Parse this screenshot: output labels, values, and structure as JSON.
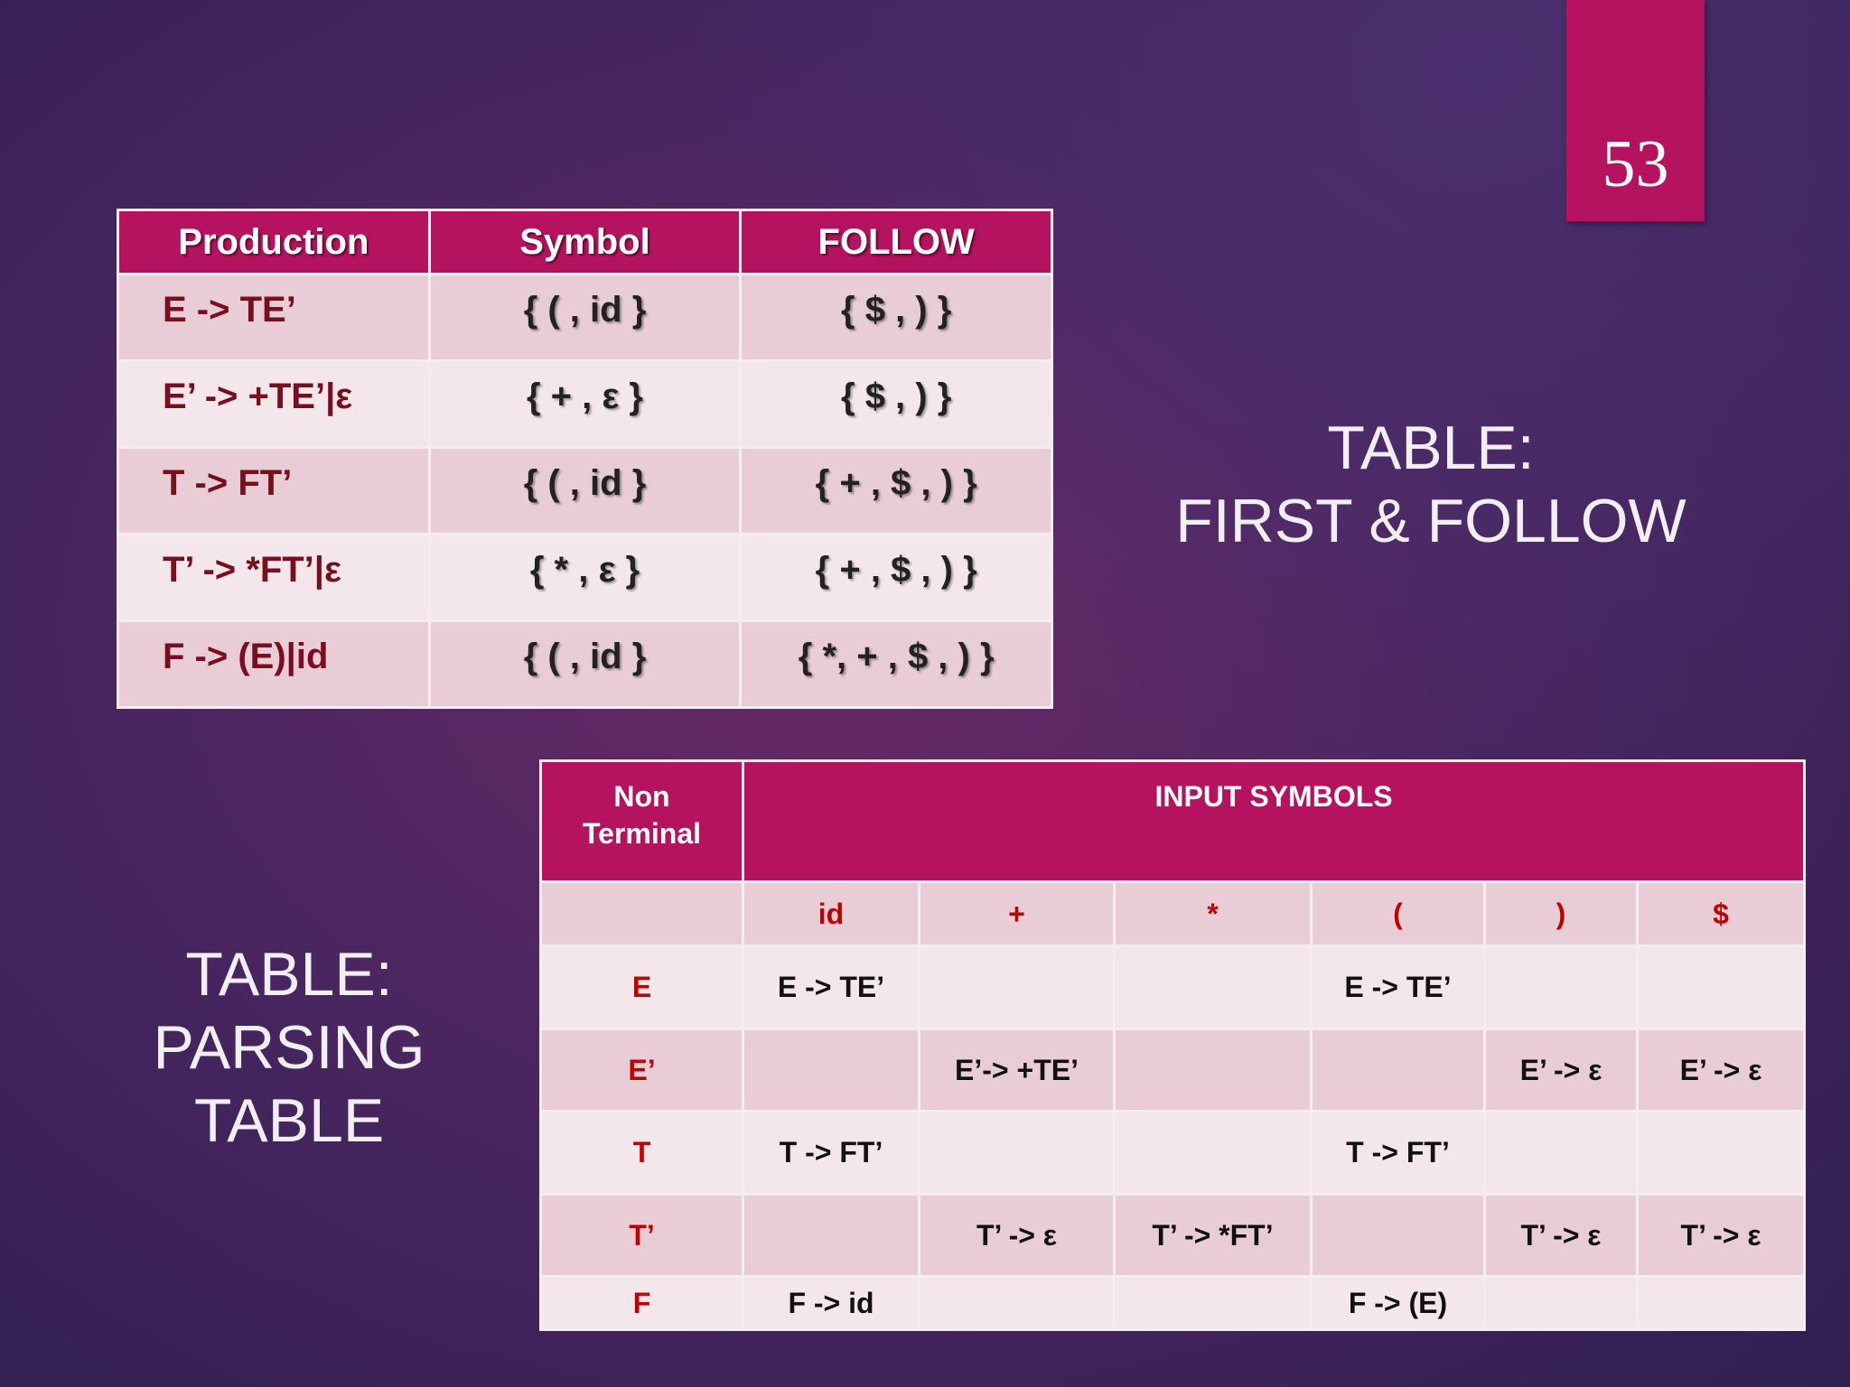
{
  "page_number": "53",
  "first_follow_heading": [
    "TABLE:",
    "FIRST & FOLLOW"
  ],
  "first_follow_table": {
    "header": [
      "Production",
      "Symbol",
      "FOLLOW"
    ],
    "rows": [
      [
        "E -> TE’",
        "{ ( , id }",
        "{ $ , ) }"
      ],
      [
        "E’ -> +TE’|ε",
        "{ + , ε }",
        "{ $ , ) }"
      ],
      [
        "T -> FT’",
        "{ ( , id }",
        "{ + , $ , ) }"
      ],
      [
        "T’ -> *FT’|ε",
        "{ * ,  ε }",
        "{ + , $ , ) }"
      ],
      [
        "F -> (E)|id",
        "{ ( , id }",
        "{ *, + , $ , ) }"
      ]
    ]
  },
  "parsing_heading": [
    "TABLE:",
    "PARSING",
    "TABLE"
  ],
  "parsing_table": {
    "header": {
      "non_terminal": [
        "Non",
        "Terminal"
      ],
      "input_symbols": "INPUT SYMBOLS"
    },
    "symbols": [
      "id",
      "+",
      "*",
      "(",
      ")",
      "$"
    ],
    "rows": [
      {
        "label": "E",
        "cells": [
          "E -> TE’",
          null,
          null,
          "E -> TE’",
          null,
          null
        ]
      },
      {
        "label": "E’",
        "cells": [
          null,
          "E’-> +TE’",
          null,
          null,
          "E’ -> ε",
          "E’ -> ε"
        ]
      },
      {
        "label": "T",
        "cells": [
          "T -> FT’",
          null,
          null,
          "T -> FT’",
          null,
          null
        ]
      },
      {
        "label": "T’",
        "cells": [
          null,
          "T’ -> ε",
          "T’ -> *FT’",
          null,
          "T’ -> ε",
          "T’ -> ε"
        ]
      },
      {
        "label": "F",
        "cells": [
          "F -> id",
          null,
          null,
          "F -> (E)",
          null,
          null
        ]
      }
    ]
  }
}
